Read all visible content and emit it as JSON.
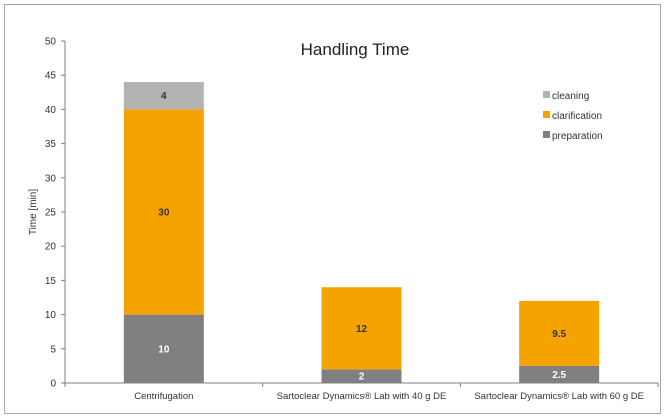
{
  "chart_data": {
    "type": "bar",
    "stacked": true,
    "title": "Handling Time",
    "ylabel": "Time [min]",
    "xlabel": "",
    "ylim": [
      0,
      50
    ],
    "yticks": [
      "0",
      "5",
      "10",
      "15",
      "20",
      "25",
      "30",
      "35",
      "40",
      "45",
      "50"
    ],
    "categories": [
      "Centrifugation",
      "Sartoclear Dynamics® Lab with 40 g DE",
      "Sartoclear Dynamics® Lab with 60 g DE"
    ],
    "series": [
      {
        "name": "preparation",
        "color": "#808080",
        "label_color": "#ffffff",
        "values": [
          10,
          2,
          2.5
        ],
        "labels": [
          "10",
          "2",
          "2.5"
        ]
      },
      {
        "name": "clarification",
        "color": "#f5a300",
        "label_color": "#333333",
        "values": [
          30,
          12,
          9.5
        ],
        "labels": [
          "30",
          "12",
          "9.5"
        ]
      },
      {
        "name": "cleaning",
        "color": "#b3b3b3",
        "label_color": "#333333",
        "values": [
          4,
          0,
          0
        ],
        "labels": [
          "4",
          "",
          ""
        ]
      }
    ],
    "legend_order": [
      "cleaning",
      "clarification",
      "preparation"
    ],
    "legend_position": "top-right",
    "grid": false
  }
}
